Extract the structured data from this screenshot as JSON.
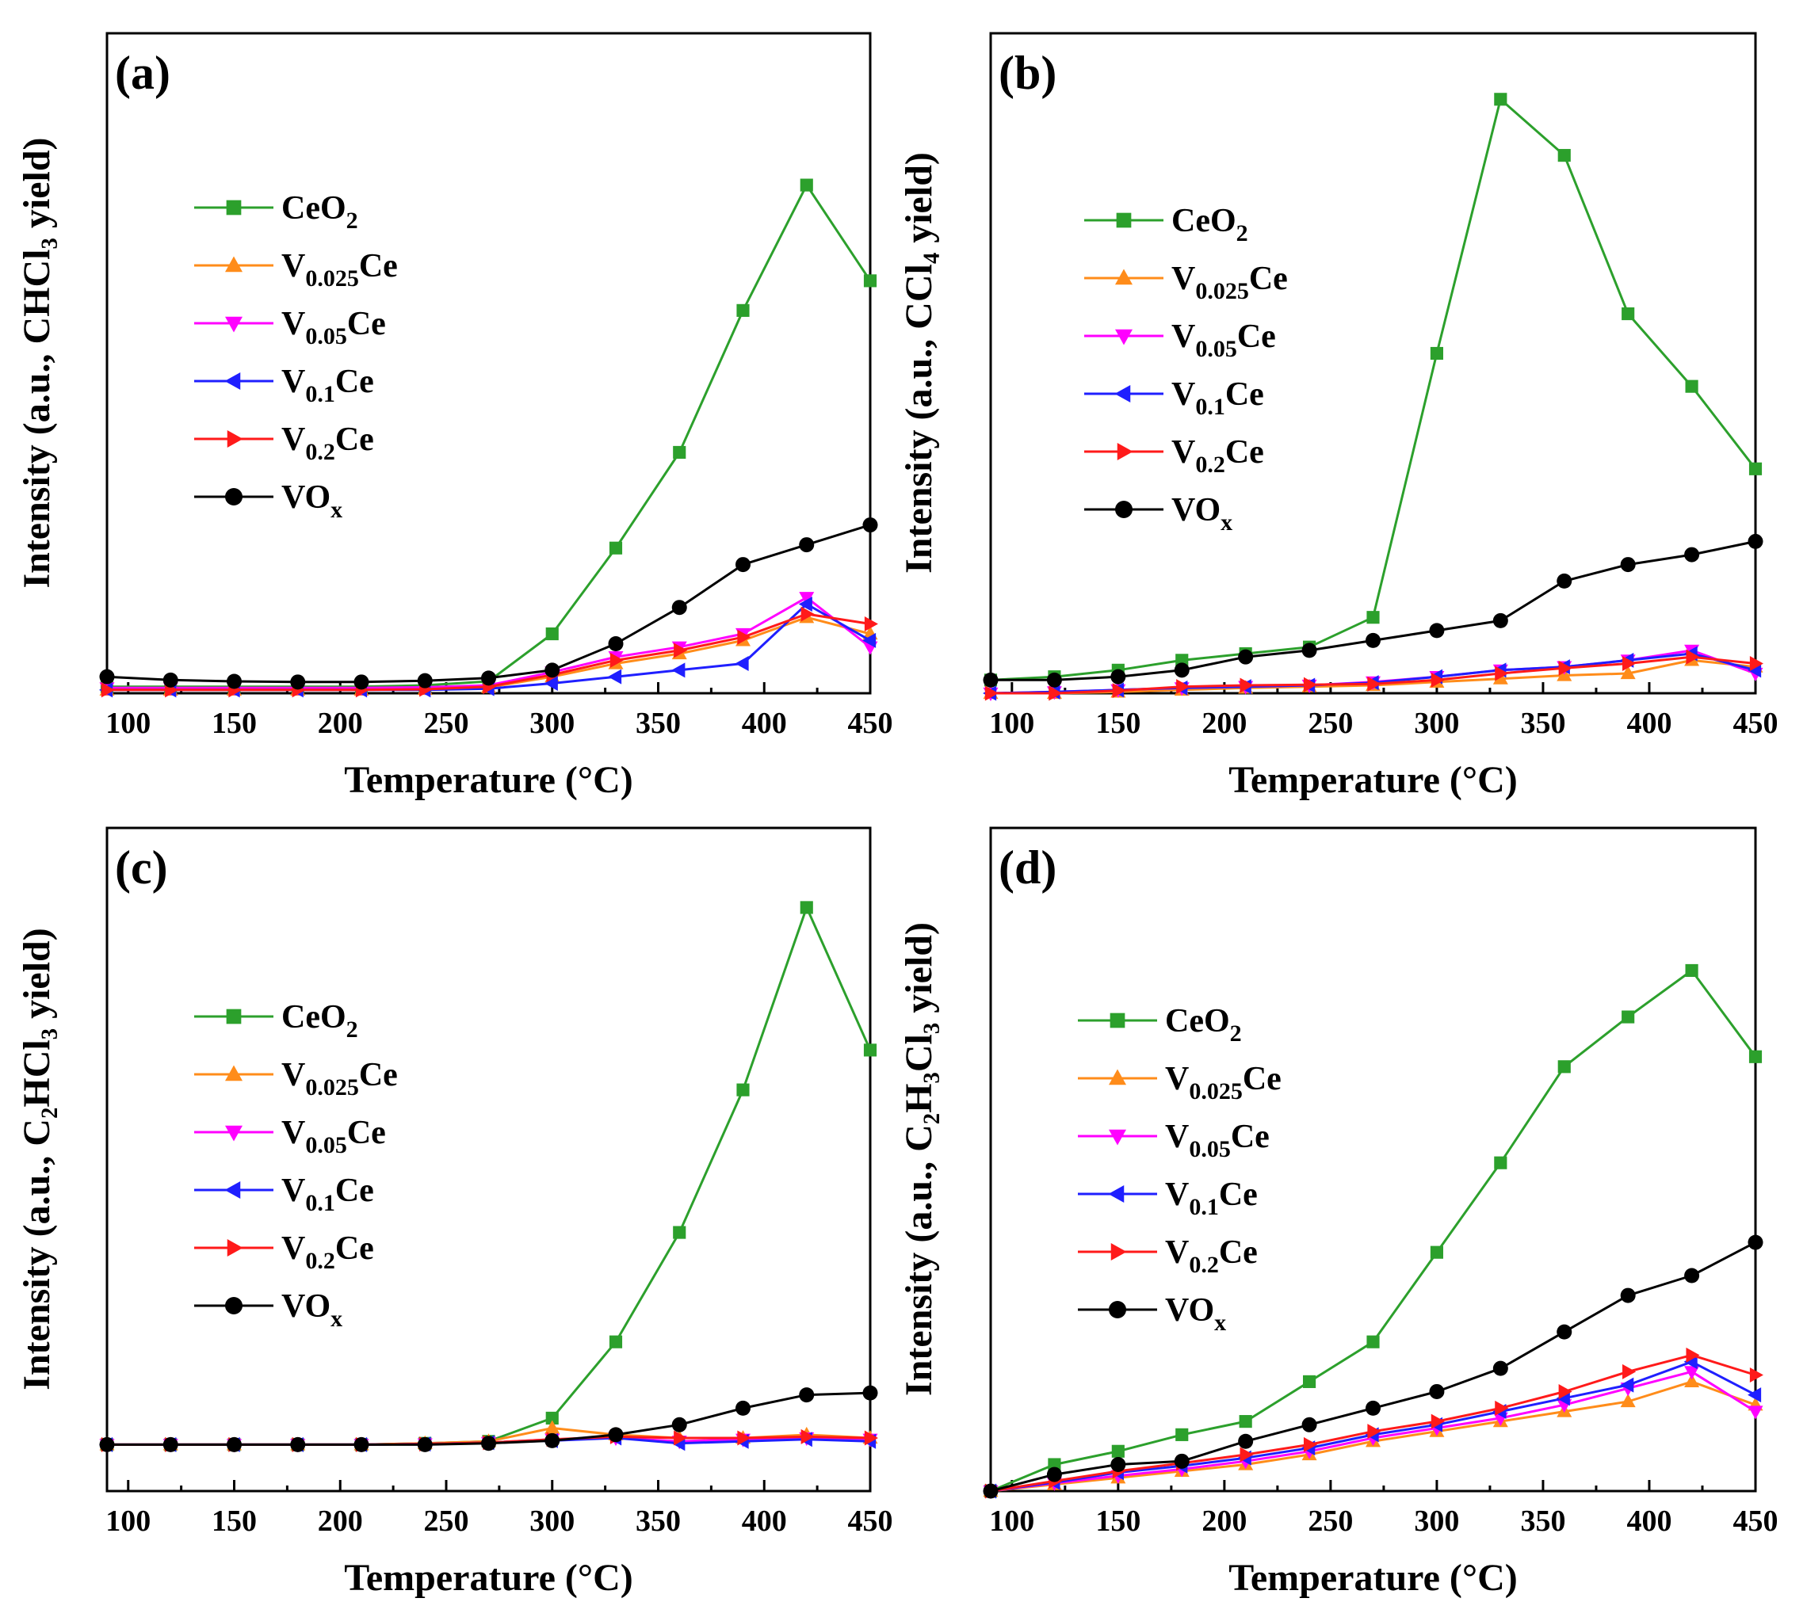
{
  "chart_data": [
    {
      "type": "line",
      "panel_label": "(a)",
      "xlabel": "Temperature (°C)",
      "ylabel": "Intensity (a.u., CHCl₃ yield)",
      "xlim": [
        90,
        450
      ],
      "ylim": [
        0,
        100
      ],
      "xticks": [
        100,
        150,
        200,
        250,
        300,
        350,
        400,
        450
      ],
      "legend": "top-left",
      "x": [
        90,
        120,
        150,
        180,
        210,
        240,
        270,
        300,
        330,
        360,
        390,
        420,
        450
      ],
      "series": [
        {
          "name": "CeO2",
          "color": "#2ca02c",
          "marker": "square",
          "values": [
            1.0,
            1.0,
            1.0,
            1.0,
            1.0,
            1.2,
            1.8,
            9.0,
            22.0,
            36.5,
            58.0,
            77.0,
            62.5
          ]
        },
        {
          "name": "V0.025Ce",
          "color": "#ff8c1a",
          "marker": "triangle-up",
          "values": [
            0.5,
            0.5,
            0.5,
            0.5,
            0.5,
            0.6,
            0.9,
            2.5,
            4.5,
            6.0,
            8.0,
            11.5,
            9.0
          ]
        },
        {
          "name": "V0.05Ce",
          "color": "#ff00ff",
          "marker": "triangle-down",
          "values": [
            0.8,
            0.8,
            0.8,
            0.8,
            0.8,
            0.9,
            1.2,
            3.2,
            5.5,
            7.0,
            9.0,
            14.5,
            7.0
          ]
        },
        {
          "name": "V0.1Ce",
          "color": "#1f1fff",
          "marker": "triangle-left",
          "values": [
            0.5,
            0.5,
            0.5,
            0.5,
            0.5,
            0.5,
            0.7,
            1.5,
            2.5,
            3.5,
            4.5,
            13.5,
            8.0
          ]
        },
        {
          "name": "V0.2Ce",
          "color": "#ff1a1a",
          "marker": "triangle-right",
          "values": [
            0.5,
            0.5,
            0.5,
            0.5,
            0.5,
            0.6,
            1.0,
            2.8,
            5.0,
            6.5,
            8.5,
            12.0,
            10.5
          ]
        },
        {
          "name": "VOx",
          "color": "#000000",
          "marker": "circle",
          "values": [
            2.5,
            2.0,
            1.8,
            1.7,
            1.7,
            1.9,
            2.3,
            3.5,
            7.5,
            13.0,
            19.5,
            22.5,
            25.5
          ]
        }
      ]
    },
    {
      "type": "line",
      "panel_label": "(b)",
      "xlabel": "Temperature (°C)",
      "ylabel": "Intensity (a.u., CCl₄ yield)",
      "xlim": [
        90,
        450
      ],
      "ylim": [
        0,
        100
      ],
      "xticks": [
        100,
        150,
        200,
        250,
        300,
        350,
        400,
        450
      ],
      "legend": "top-left",
      "x": [
        90,
        120,
        150,
        180,
        210,
        240,
        270,
        300,
        330,
        360,
        390,
        420,
        450
      ],
      "series": [
        {
          "name": "CeO2",
          "color": "#2ca02c",
          "marker": "square",
          "values": [
            2.0,
            2.5,
            3.5,
            5.0,
            6.0,
            7.0,
            11.5,
            51.5,
            90.0,
            81.5,
            57.5,
            46.5,
            34.0
          ]
        },
        {
          "name": "V0.025Ce",
          "color": "#ff8c1a",
          "marker": "triangle-up",
          "values": [
            0.0,
            0.0,
            0.2,
            0.5,
            0.8,
            1.0,
            1.2,
            1.7,
            2.2,
            2.7,
            3.0,
            5.0,
            4.0
          ]
        },
        {
          "name": "V0.05Ce",
          "color": "#ff00ff",
          "marker": "triangle-down",
          "values": [
            0.0,
            0.2,
            0.5,
            0.8,
            1.0,
            1.2,
            1.7,
            2.5,
            3.5,
            4.0,
            5.0,
            6.5,
            3.0
          ]
        },
        {
          "name": "V0.1Ce",
          "color": "#1f1fff",
          "marker": "triangle-left",
          "values": [
            0.0,
            0.2,
            0.5,
            0.8,
            1.0,
            1.2,
            1.6,
            2.5,
            3.5,
            4.0,
            5.0,
            6.0,
            3.5
          ]
        },
        {
          "name": "V0.2Ce",
          "color": "#ff1a1a",
          "marker": "triangle-right",
          "values": [
            0.0,
            0.0,
            0.4,
            1.0,
            1.2,
            1.3,
            1.4,
            2.0,
            3.0,
            3.8,
            4.5,
            5.5,
            4.5
          ]
        },
        {
          "name": "VOx",
          "color": "#000000",
          "marker": "circle",
          "values": [
            2.0,
            2.0,
            2.5,
            3.5,
            5.5,
            6.5,
            8.0,
            9.5,
            11.0,
            17.0,
            19.5,
            21.0,
            23.0
          ]
        }
      ]
    },
    {
      "type": "line",
      "panel_label": "(c)",
      "xlabel": "Temperature (°C)",
      "ylabel": "Intensity (a.u., C₂HCl₃ yield)",
      "xlim": [
        90,
        450
      ],
      "ylim": [
        0,
        100
      ],
      "xticks": [
        100,
        150,
        200,
        250,
        300,
        350,
        400,
        450
      ],
      "legend": "top-left",
      "x": [
        90,
        120,
        150,
        180,
        210,
        240,
        270,
        300,
        330,
        360,
        390,
        420,
        450
      ],
      "series": [
        {
          "name": "CeO2",
          "color": "#2ca02c",
          "marker": "square",
          "values": [
            7.0,
            7.0,
            7.0,
            7.0,
            7.0,
            7.2,
            7.5,
            11.0,
            22.5,
            39.0,
            60.5,
            88.0,
            66.5
          ]
        },
        {
          "name": "V0.025Ce",
          "color": "#ff8c1a",
          "marker": "triangle-up",
          "values": [
            7.0,
            7.0,
            7.0,
            7.0,
            7.0,
            7.2,
            7.5,
            9.5,
            8.5,
            8.0,
            8.0,
            8.5,
            8.0
          ]
        },
        {
          "name": "V0.05Ce",
          "color": "#ff00ff",
          "marker": "triangle-down",
          "values": [
            7.0,
            7.0,
            7.0,
            7.0,
            7.0,
            7.1,
            7.3,
            7.8,
            8.0,
            7.5,
            7.8,
            8.0,
            7.8
          ]
        },
        {
          "name": "V0.1Ce",
          "color": "#1f1fff",
          "marker": "triangle-left",
          "values": [
            7.0,
            7.0,
            7.0,
            7.0,
            7.0,
            7.1,
            7.3,
            7.6,
            8.0,
            7.2,
            7.5,
            7.8,
            7.5
          ]
        },
        {
          "name": "V0.2Ce",
          "color": "#ff1a1a",
          "marker": "triangle-right",
          "values": [
            7.0,
            7.0,
            7.0,
            7.0,
            7.0,
            7.1,
            7.3,
            7.8,
            8.2,
            8.0,
            8.0,
            8.2,
            8.0
          ]
        },
        {
          "name": "VOx",
          "color": "#000000",
          "marker": "circle",
          "values": [
            7.0,
            7.0,
            7.0,
            7.0,
            7.0,
            7.0,
            7.2,
            7.6,
            8.5,
            10.0,
            12.5,
            14.5,
            14.8
          ]
        }
      ]
    },
    {
      "type": "line",
      "panel_label": "(d)",
      "xlabel": "Temperature (°C)",
      "ylabel": "Intensity (a.u., C₂H₃Cl₃ yield)",
      "xlim": [
        90,
        450
      ],
      "ylim": [
        0,
        100
      ],
      "xticks": [
        100,
        150,
        200,
        250,
        300,
        350,
        400,
        450
      ],
      "legend": "top-left",
      "x": [
        90,
        120,
        150,
        180,
        210,
        240,
        270,
        300,
        330,
        360,
        390,
        420,
        450
      ],
      "series": [
        {
          "name": "CeO2",
          "color": "#2ca02c",
          "marker": "square",
          "values": [
            0.0,
            4.0,
            6.0,
            8.5,
            10.5,
            16.5,
            22.5,
            36.0,
            49.5,
            64.0,
            71.5,
            78.5,
            65.5
          ]
        },
        {
          "name": "V0.025Ce",
          "color": "#ff8c1a",
          "marker": "triangle-up",
          "values": [
            0.0,
            1.0,
            2.0,
            3.0,
            4.0,
            5.5,
            7.5,
            9.0,
            10.5,
            12.0,
            13.5,
            16.5,
            13.0
          ]
        },
        {
          "name": "V0.05Ce",
          "color": "#ff00ff",
          "marker": "triangle-down",
          "values": [
            0.0,
            1.2,
            2.3,
            3.3,
            4.5,
            6.0,
            8.0,
            9.5,
            11.0,
            13.0,
            15.5,
            18.0,
            12.0
          ]
        },
        {
          "name": "V0.1Ce",
          "color": "#1f1fff",
          "marker": "triangle-left",
          "values": [
            0.0,
            1.3,
            2.8,
            3.8,
            5.0,
            6.5,
            8.5,
            10.0,
            12.0,
            14.0,
            16.0,
            19.5,
            14.5
          ]
        },
        {
          "name": "V0.2Ce",
          "color": "#ff1a1a",
          "marker": "triangle-right",
          "values": [
            0.0,
            1.5,
            3.0,
            4.2,
            5.5,
            7.0,
            9.0,
            10.5,
            12.5,
            15.0,
            18.0,
            20.5,
            17.5
          ]
        },
        {
          "name": "VOx",
          "color": "#000000",
          "marker": "circle",
          "values": [
            0.0,
            2.5,
            4.0,
            4.5,
            7.5,
            10.0,
            12.5,
            15.0,
            18.5,
            24.0,
            29.5,
            32.5,
            37.5
          ]
        }
      ]
    }
  ]
}
